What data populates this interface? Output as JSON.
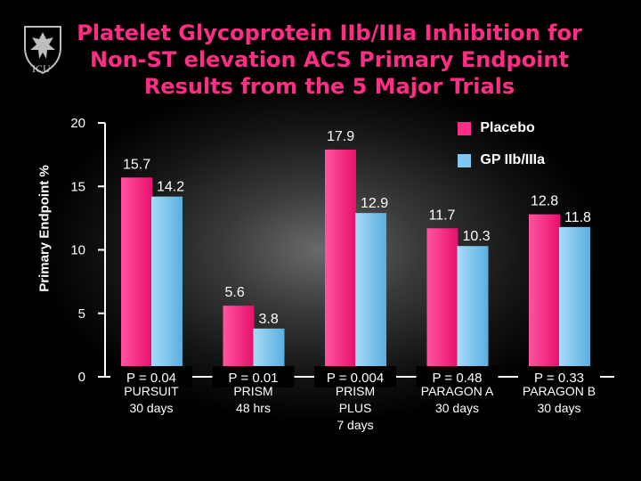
{
  "header": {
    "logo_text": "ICU",
    "title_lines": [
      "Platelet Glycoprotein IIb/IIIa Inhibition for",
      "Non-ST elevation ACS Primary Endpoint",
      "Results from the 5 Major Trials"
    ]
  },
  "colors": {
    "placebo": "#ff2d86",
    "gp": "#7fc6f0",
    "axis": "#ffffff"
  },
  "chart_data": {
    "type": "bar",
    "ylabel": "Primary Endpoint %",
    "ylim": [
      0,
      20
    ],
    "yticks": [
      "0",
      "5",
      "10",
      "15",
      "20"
    ],
    "categories": [
      {
        "name": "PURSUIT",
        "detail": "30 days",
        "p": "P = 0.04"
      },
      {
        "name": "PRISM",
        "detail": "48 hrs",
        "p": "P = 0.01"
      },
      {
        "name": "PRISM",
        "detail": "PLUS",
        "detail2": "7 days",
        "p": "P = 0.004"
      },
      {
        "name": "PARAGON A",
        "detail": "30 days",
        "p": "P = 0.48"
      },
      {
        "name": "PARAGON B",
        "detail": "30 days",
        "p": "P = 0.33"
      }
    ],
    "series": [
      {
        "name": "Placebo",
        "values": [
          15.7,
          5.6,
          17.9,
          11.7,
          12.8
        ],
        "labels": [
          "15.7",
          "5.6",
          "17.9",
          "11.7",
          "12.8"
        ]
      },
      {
        "name": "GP IIb/IIIa",
        "values": [
          14.2,
          3.8,
          12.9,
          10.3,
          11.8
        ],
        "labels": [
          "14.2",
          "3.8",
          "12.9",
          "10.3",
          "11.8"
        ]
      }
    ],
    "legend": "top-right"
  }
}
